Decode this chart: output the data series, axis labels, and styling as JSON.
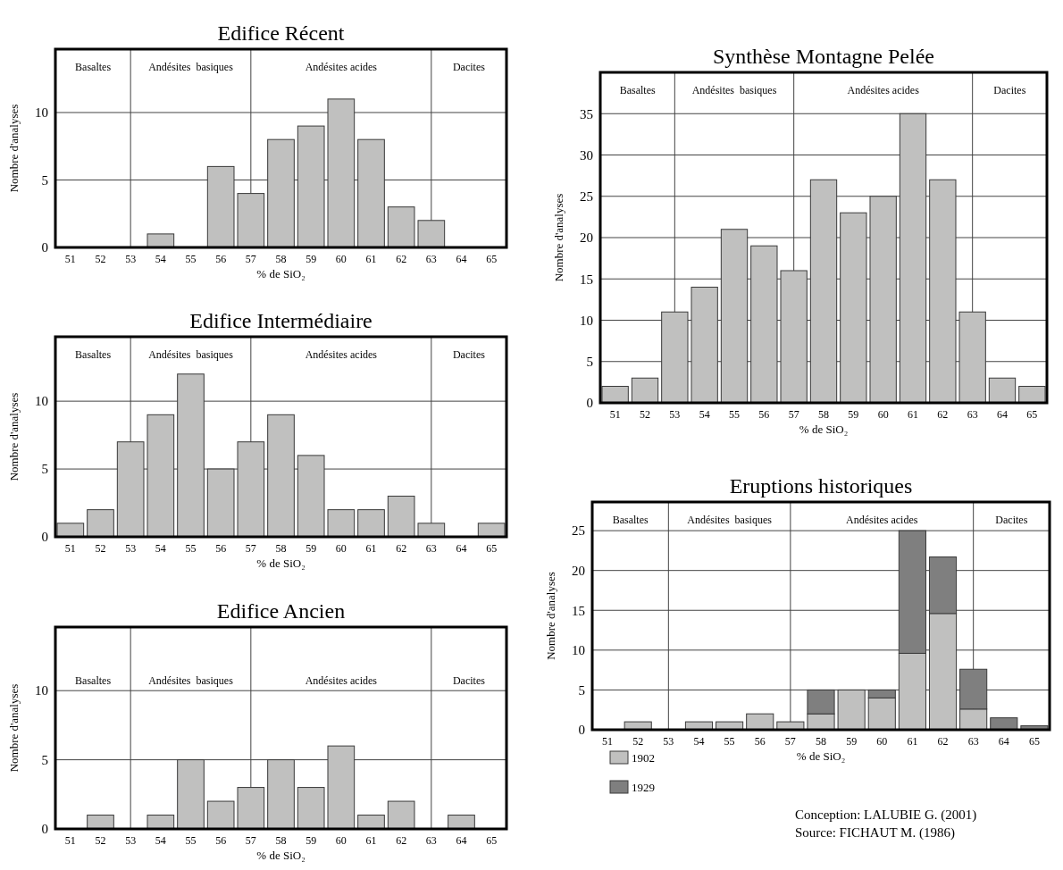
{
  "chart_data": [
    {
      "type": "bar",
      "title": "Edifice Récent",
      "xlabel": "% de SiO₂",
      "ylabel": "Nombre d'analyses",
      "x": [
        51,
        52,
        53,
        54,
        55,
        56,
        57,
        58,
        59,
        60,
        61,
        62,
        63,
        64,
        65
      ],
      "values": [
        0,
        0,
        0,
        1,
        0,
        6,
        4,
        8,
        9,
        11,
        8,
        3,
        2,
        0,
        0
      ],
      "color": "#c0c0bf",
      "xlim": [
        50.5,
        65.5
      ],
      "xticks": [
        51,
        52,
        53,
        54,
        55,
        56,
        57,
        58,
        59,
        60,
        61,
        62,
        63,
        64,
        65
      ],
      "ylim": [
        0,
        14.7
      ],
      "yticks": [
        0,
        5,
        10
      ],
      "grid": "y",
      "ref_lines": [
        {
          "axis": "x",
          "value": 53,
          "color": "#444444"
        },
        {
          "axis": "x",
          "value": 57,
          "color": "#444444"
        },
        {
          "axis": "x",
          "value": 63,
          "color": "#444444"
        }
      ],
      "annotations": [
        "Basaltes",
        "Andésites  basiques",
        "Andésites acides",
        "Dacites"
      ]
    },
    {
      "type": "bar",
      "title": "Edifice Intermédiaire",
      "xlabel": "% de SiO₂",
      "ylabel": "Nombre d'analyses",
      "x": [
        51,
        52,
        53,
        54,
        55,
        56,
        57,
        58,
        59,
        60,
        61,
        62,
        63,
        64,
        65
      ],
      "values": [
        1,
        2,
        7,
        9,
        12,
        5,
        7,
        9,
        6,
        2,
        2,
        3,
        1,
        0,
        1
      ],
      "color": "#c0c0bf",
      "xlim": [
        50.5,
        65.5
      ],
      "xticks": [
        51,
        52,
        53,
        54,
        55,
        56,
        57,
        58,
        59,
        60,
        61,
        62,
        63,
        64,
        65
      ],
      "ylim": [
        0,
        14.75
      ],
      "yticks": [
        0,
        5,
        10
      ],
      "grid": "y",
      "ref_lines": [
        {
          "axis": "x",
          "value": 53,
          "color": "#444444"
        },
        {
          "axis": "x",
          "value": 57,
          "color": "#444444"
        },
        {
          "axis": "x",
          "value": 63,
          "color": "#444444"
        }
      ],
      "annotations": [
        "Basaltes",
        "Andésites  basiques",
        "Andésites acides",
        "Dacites"
      ]
    },
    {
      "type": "bar",
      "title": "Edifice Ancien",
      "xlabel": "% de SiO₂",
      "ylabel": "Nombre d'analyses",
      "x": [
        51,
        52,
        53,
        54,
        55,
        56,
        57,
        58,
        59,
        60,
        61,
        62,
        63,
        64,
        65
      ],
      "values": [
        0,
        1,
        0,
        1,
        5,
        2,
        3,
        5,
        3,
        6,
        1,
        2,
        0,
        1,
        0
      ],
      "color": "#c0c0bf",
      "xlim": [
        50.5,
        65.5
      ],
      "xticks": [
        51,
        52,
        53,
        54,
        55,
        56,
        57,
        58,
        59,
        60,
        61,
        62,
        63,
        64,
        65
      ],
      "ylim": [
        0,
        14.6
      ],
      "yticks": [
        0,
        5,
        10
      ],
      "grid": "y",
      "ref_lines": [
        {
          "axis": "x",
          "value": 53,
          "color": "#444444"
        },
        {
          "axis": "x",
          "value": 57,
          "color": "#444444"
        },
        {
          "axis": "x",
          "value": 63,
          "color": "#444444"
        }
      ],
      "annotations": [
        "Basaltes",
        "Andésites  basiques",
        "Andésites acides",
        "Dacites"
      ]
    },
    {
      "type": "bar",
      "title": "Synthèse Montagne Pelée",
      "xlabel": "% de SiO₂",
      "ylabel": "Nombre d'analyses",
      "x": [
        51,
        52,
        53,
        54,
        55,
        56,
        57,
        58,
        59,
        60,
        61,
        62,
        63,
        64,
        65
      ],
      "values": [
        2,
        3,
        11,
        14,
        21,
        19,
        16,
        27,
        23,
        25,
        35,
        27,
        11,
        3,
        2
      ],
      "color": "#c0c0bf",
      "xlim": [
        50.5,
        65.5
      ],
      "xticks": [
        51,
        52,
        53,
        54,
        55,
        56,
        57,
        58,
        59,
        60,
        61,
        62,
        63,
        64,
        65
      ],
      "ylim": [
        0,
        40
      ],
      "yticks": [
        0,
        5,
        10,
        15,
        20,
        25,
        30,
        35
      ],
      "grid": "y",
      "ref_lines": [
        {
          "axis": "x",
          "value": 53,
          "color": "#444444"
        },
        {
          "axis": "x",
          "value": 57,
          "color": "#444444"
        },
        {
          "axis": "x",
          "value": 63,
          "color": "#444444"
        }
      ],
      "annotations": [
        "Basaltes",
        "Andésites  basiques",
        "Andésites acides",
        "Dacites"
      ]
    },
    {
      "type": "bar",
      "title": "Eruptions historiques",
      "xlabel": "% de SiO₂",
      "ylabel": "Nombre d'analyses",
      "x": [
        51,
        52,
        53,
        54,
        55,
        56,
        57,
        58,
        59,
        60,
        61,
        62,
        63,
        64,
        65
      ],
      "stacked": true,
      "legend": "bottom left",
      "series": [
        {
          "name": "1902",
          "color": "#c0c0bf",
          "values": [
            0,
            1,
            0,
            1,
            1,
            2,
            1,
            2,
            5,
            4,
            9.6,
            14.6,
            2.6,
            0,
            0
          ]
        },
        {
          "name": "1929",
          "color": "#7f7f7f",
          "values": [
            0,
            0,
            0,
            0,
            0,
            0,
            0,
            3,
            0,
            1,
            15.4,
            7.1,
            5,
            1.5,
            0.5
          ]
        }
      ],
      "xlim": [
        50.5,
        65.5
      ],
      "xticks": [
        51,
        52,
        53,
        54,
        55,
        56,
        57,
        58,
        59,
        60,
        61,
        62,
        63,
        64,
        65
      ],
      "ylim": [
        0,
        28.6
      ],
      "yticks": [
        0,
        5,
        10,
        15,
        20,
        25
      ],
      "grid": "y",
      "ref_lines": [
        {
          "axis": "x",
          "value": 53,
          "color": "#444444"
        },
        {
          "axis": "x",
          "value": 57,
          "color": "#444444"
        },
        {
          "axis": "x",
          "value": 63,
          "color": "#444444"
        }
      ],
      "annotations": [
        "Basaltes",
        "Andésites  basiques",
        "Andésites acides",
        "Dacites",
        "Conception: LALUBIE G. (2001)",
        "Source: FICHAUT M. (1986)"
      ]
    }
  ]
}
